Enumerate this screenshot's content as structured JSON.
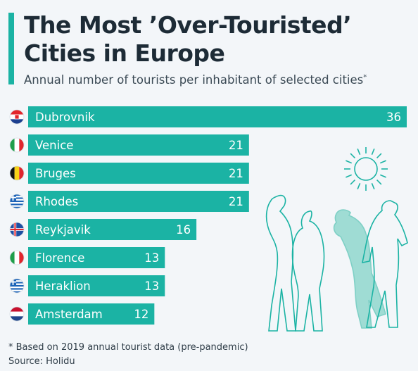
{
  "header": {
    "title_line1": "The Most ’Over-Touristed’",
    "title_line2": "Cities in Europe",
    "subtitle": "Annual number of tourists per inhabitant of selected cities",
    "subtitle_mark": "*"
  },
  "footer": {
    "footnote": "* Based on 2019 annual tourist data (pre-pandemic)",
    "source": "Source: Holidu"
  },
  "colors": {
    "bar": "#1bb3a4",
    "bar_label": "#ffffff",
    "value_outside": "#1d2b36",
    "illustration": "#1bb3a4"
  },
  "chart_data": {
    "type": "bar",
    "orientation": "horizontal",
    "categories": [
      "Dubrovnik",
      "Venice",
      "Bruges",
      "Rhodes",
      "Reykjavik",
      "Florence",
      "Heraklion",
      "Amsterdam"
    ],
    "values": [
      36,
      21,
      21,
      21,
      16,
      13,
      13,
      12
    ],
    "flags": [
      "croatia-flag-icon",
      "italy-flag-icon",
      "belgium-flag-icon",
      "greece-flag-icon",
      "iceland-flag-icon",
      "italy-flag-icon",
      "greece-flag-icon",
      "netherlands-flag-icon"
    ],
    "xlim": [
      0,
      36
    ],
    "grid": false,
    "legend": "none"
  }
}
